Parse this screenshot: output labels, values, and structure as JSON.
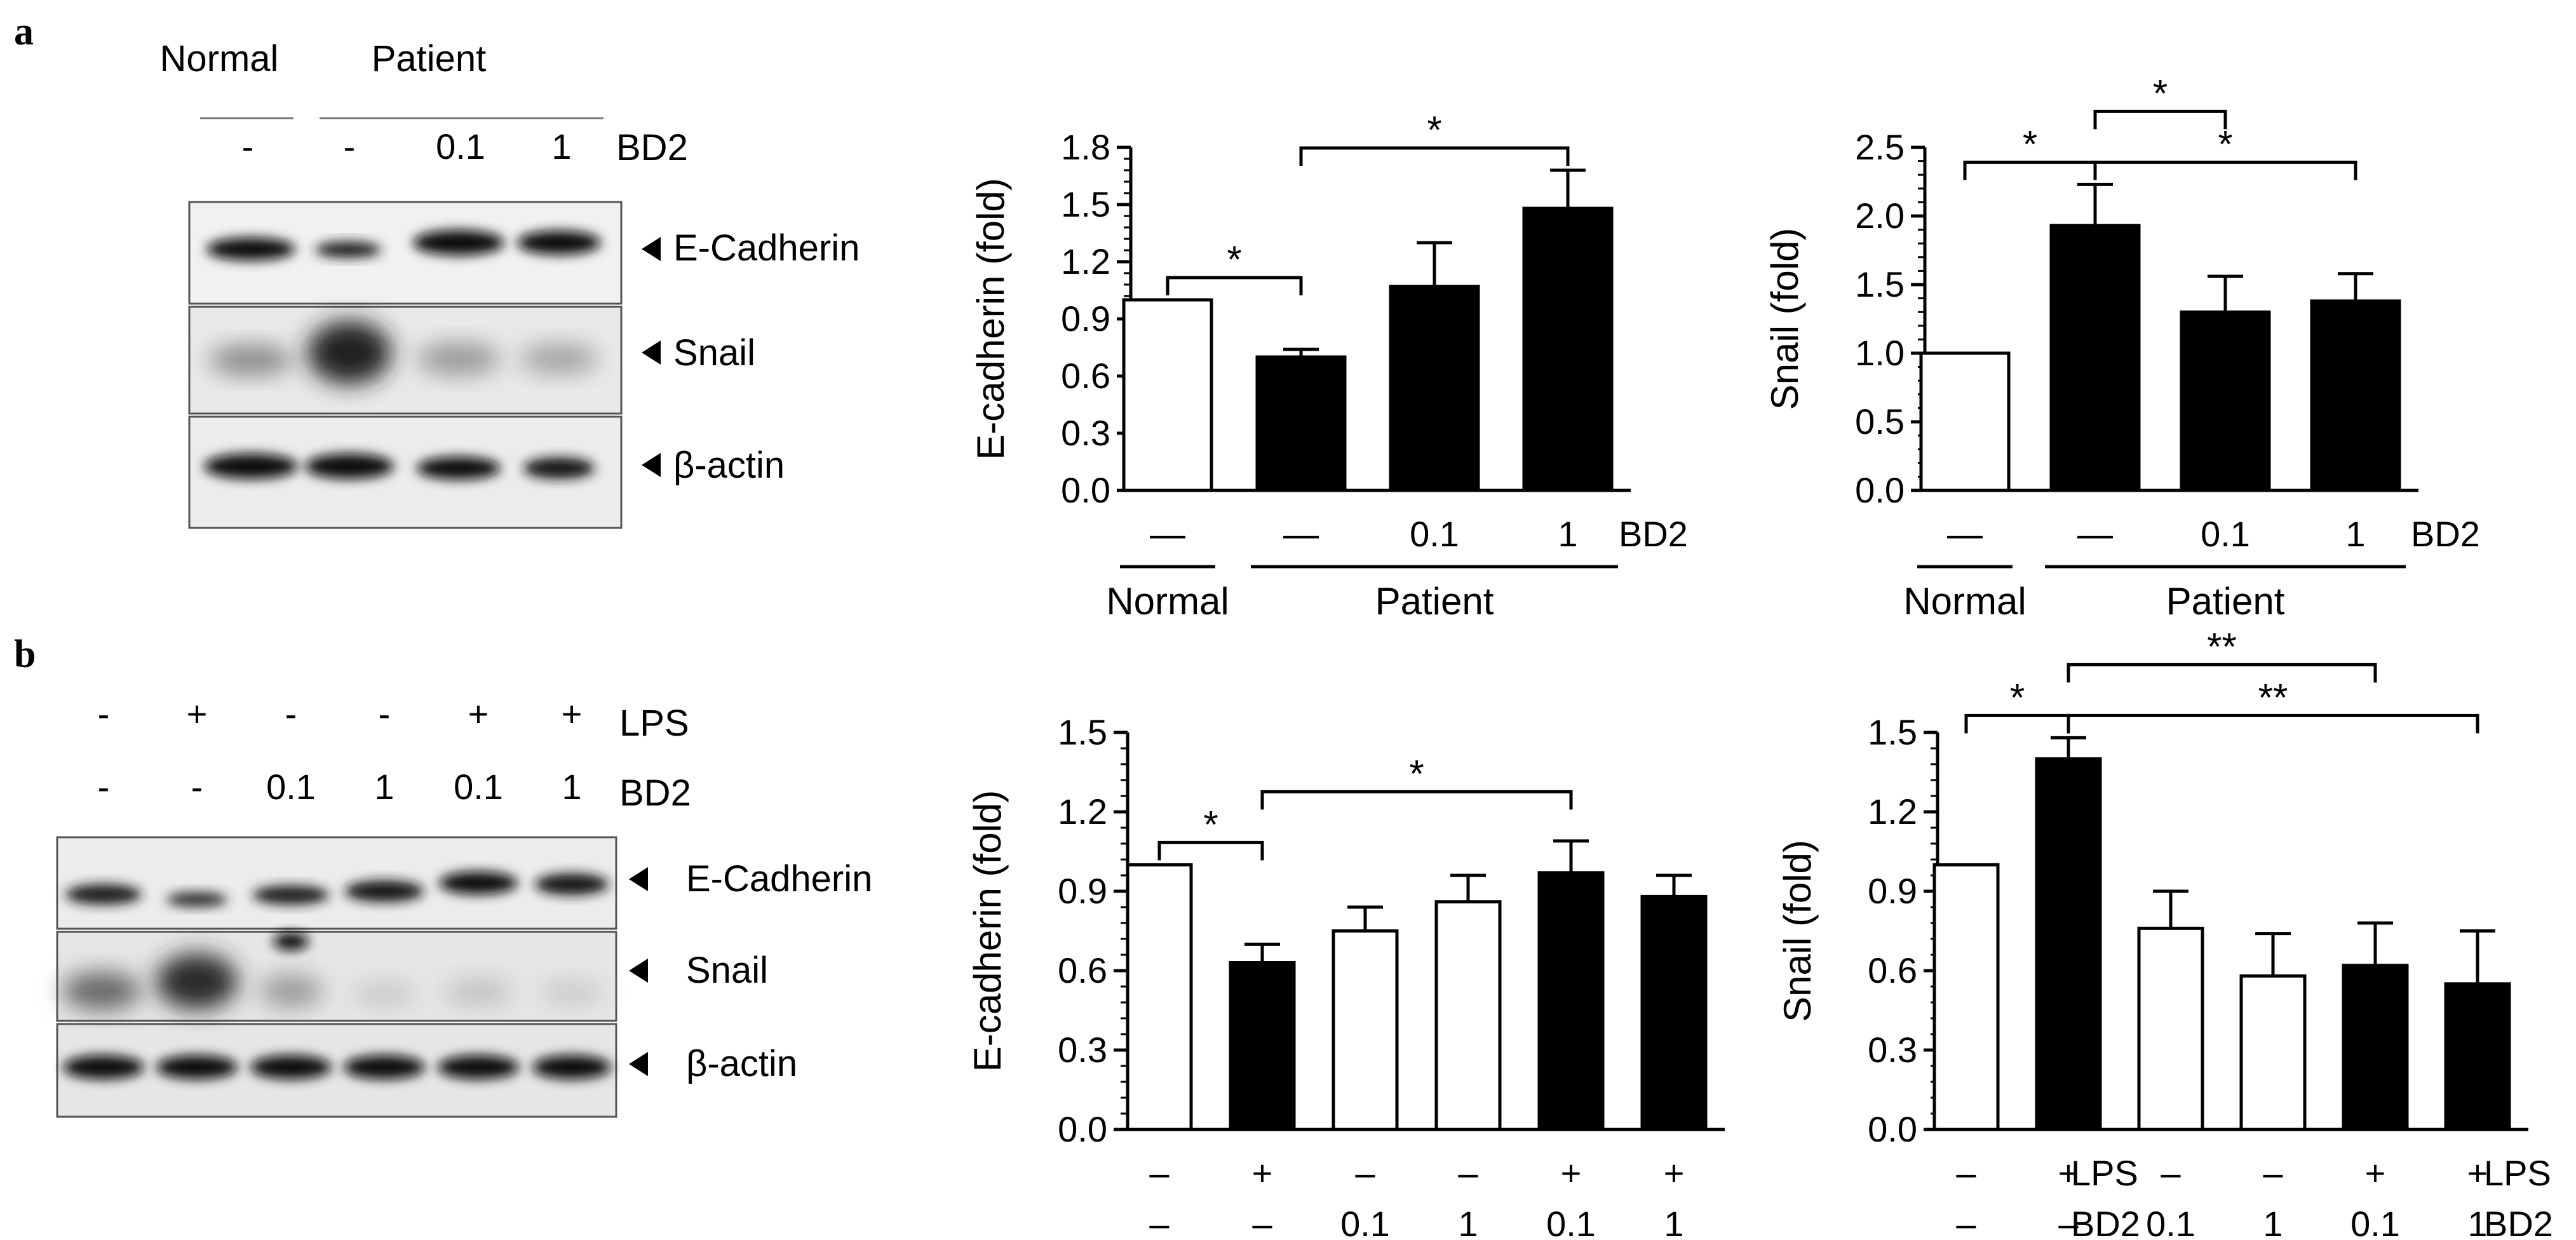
{
  "panels": {
    "a": {
      "letter": "a",
      "blot": {
        "group_normal": "Normal",
        "group_patient": "Patient",
        "lanes_bd2": [
          "-",
          "-",
          "0.1",
          "1"
        ],
        "treatment_label": "BD2",
        "markers": [
          "E-Cadherin",
          "Snail",
          "β-actin"
        ]
      }
    },
    "b": {
      "letter": "b",
      "blot": {
        "lanes_lps": [
          "-",
          "+",
          "-",
          "-",
          "+",
          "+"
        ],
        "lanes_bd2": [
          "-",
          "-",
          "0.1",
          "1",
          "0.1",
          "1"
        ],
        "lps_label": "LPS",
        "bd2_label": "BD2",
        "markers": [
          "E-Cadherin",
          "Snail",
          "β-actin"
        ]
      }
    }
  },
  "chart_data": [
    {
      "id": "a-ecad",
      "type": "bar",
      "ylabel": "E-cadherin (fold)",
      "ylim": [
        0,
        1.8
      ],
      "yticks": [
        "0.0",
        "0.3",
        "0.6",
        "0.9",
        "1.2",
        "1.5",
        "1.8"
      ],
      "rows": [
        {
          "label": "BD2",
          "values": [
            "—",
            "—",
            "0.1",
            "1"
          ]
        }
      ],
      "groups": [
        {
          "label": "Normal",
          "from": 0,
          "to": 0
        },
        {
          "label": "Patient",
          "from": 1,
          "to": 3
        }
      ],
      "values": [
        1.0,
        0.7,
        1.07,
        1.48
      ],
      "errors": [
        0,
        0.04,
        0.23,
        0.2
      ],
      "fills": [
        "white",
        "black",
        "black",
        "black"
      ],
      "significance": [
        {
          "from": 0,
          "to": 1,
          "label": "*"
        },
        {
          "from": 1,
          "to": 3,
          "label": "*"
        }
      ]
    },
    {
      "id": "a-snail",
      "type": "bar",
      "ylabel": "Snail (fold)",
      "ylim": [
        0,
        2.5
      ],
      "yticks": [
        "0.0",
        "0.5",
        "1.0",
        "1.5",
        "2.0",
        "2.5"
      ],
      "rows": [
        {
          "label": "BD2",
          "values": [
            "—",
            "—",
            "0.1",
            "1"
          ]
        }
      ],
      "groups": [
        {
          "label": "Normal",
          "from": 0,
          "to": 0
        },
        {
          "label": "Patient",
          "from": 1,
          "to": 3
        }
      ],
      "values": [
        1.0,
        1.93,
        1.3,
        1.38
      ],
      "errors": [
        0,
        0.3,
        0.26,
        0.2
      ],
      "fills": [
        "white",
        "black",
        "black",
        "black"
      ],
      "significance": [
        {
          "from": 0,
          "to": 1,
          "label": "*"
        },
        {
          "from": 1,
          "to": 2,
          "label": "*"
        },
        {
          "from": 1,
          "to": 3,
          "label": "*"
        }
      ]
    },
    {
      "id": "b-ecad",
      "type": "bar",
      "ylabel": "E-cadherin (fold)",
      "ylim": [
        0,
        1.5
      ],
      "yticks": [
        "0.0",
        "0.3",
        "0.6",
        "0.9",
        "1.2",
        "1.5"
      ],
      "rows": [
        {
          "label": "LPS",
          "values": [
            "–",
            "+",
            "–",
            "–",
            "+",
            "+"
          ]
        },
        {
          "label": "BD2",
          "values": [
            "–",
            "–",
            "0.1",
            "1",
            "0.1",
            "1"
          ]
        }
      ],
      "groups": [],
      "values": [
        1.0,
        0.63,
        0.75,
        0.86,
        0.97,
        0.88
      ],
      "errors": [
        0,
        0.07,
        0.09,
        0.1,
        0.12,
        0.08
      ],
      "fills": [
        "white",
        "black",
        "white",
        "white",
        "black",
        "black"
      ],
      "significance": [
        {
          "from": 0,
          "to": 1,
          "label": "*"
        },
        {
          "from": 1,
          "to": 4,
          "label": "*"
        }
      ]
    },
    {
      "id": "b-snail",
      "type": "bar",
      "ylabel": "Snail (fold)",
      "ylim": [
        0,
        1.5
      ],
      "yticks": [
        "0.0",
        "0.3",
        "0.6",
        "0.9",
        "1.2",
        "1.5"
      ],
      "rows": [
        {
          "label": "LPS",
          "values": [
            "–",
            "+",
            "–",
            "–",
            "+",
            "+"
          ]
        },
        {
          "label": "BD2",
          "values": [
            "–",
            "–",
            "0.1",
            "1",
            "0.1",
            "1"
          ]
        }
      ],
      "groups": [],
      "values": [
        1.0,
        1.4,
        0.76,
        0.58,
        0.62,
        0.55
      ],
      "errors": [
        0,
        0.08,
        0.14,
        0.16,
        0.16,
        0.2
      ],
      "fills": [
        "white",
        "black",
        "white",
        "white",
        "black",
        "black"
      ],
      "significance": [
        {
          "from": 0,
          "to": 1,
          "label": "*"
        },
        {
          "from": 1,
          "to": 4,
          "label": "**"
        },
        {
          "from": 1,
          "to": 5,
          "label": "**"
        }
      ]
    }
  ]
}
